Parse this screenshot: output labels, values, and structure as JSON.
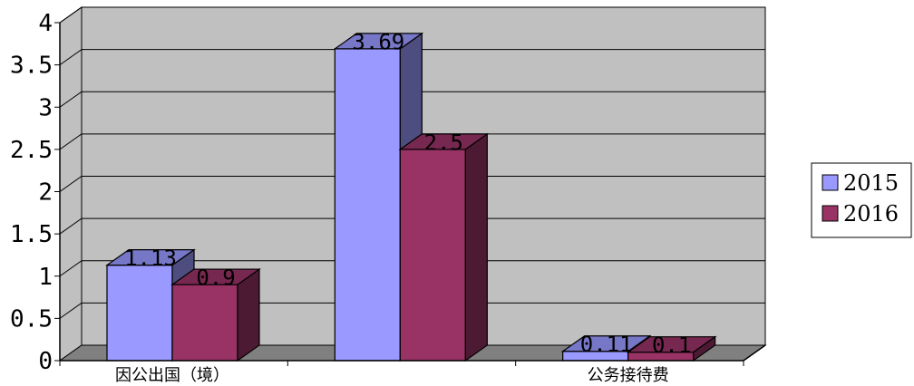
{
  "chart_data": {
    "type": "bar",
    "categories": [
      "因公出国（境）",
      "",
      "公务接待费"
    ],
    "series": [
      {
        "name": "2015",
        "values": [
          1.13,
          3.69,
          0.11
        ],
        "labels": [
          "1.13",
          "3.69",
          "0.11"
        ],
        "color": "#9999FF"
      },
      {
        "name": "2016",
        "values": [
          0.9,
          2.5,
          0.1
        ],
        "labels": [
          "0.9",
          "2.5",
          "0.1"
        ],
        "color": "#993366"
      }
    ],
    "y_ticks": [
      "0",
      "0.5",
      "1",
      "1.5",
      "2",
      "2.5",
      "3",
      "3.5",
      "4"
    ],
    "ylim": [
      0,
      4
    ],
    "grid": true,
    "legend": "right",
    "three_d": true,
    "wall_color": "#C0C0C0",
    "floor_color": "#808080",
    "title": "",
    "xlabel": "",
    "ylabel": ""
  }
}
